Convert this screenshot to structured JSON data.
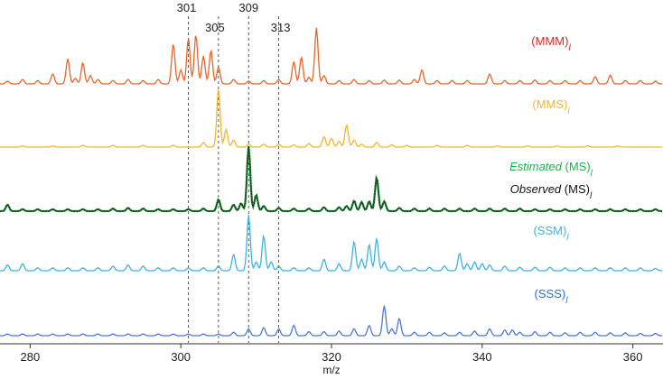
{
  "chart_data": {
    "type": "line",
    "xlabel": "m/z",
    "xlim": [
      276,
      364
    ],
    "x_ticks": [
      280,
      300,
      320,
      340,
      360
    ],
    "reference_lines": [
      {
        "x": 301,
        "label": "301"
      },
      {
        "x": 305,
        "label": "305"
      },
      {
        "x": 309,
        "label": "309"
      },
      {
        "x": 313,
        "label": "313"
      }
    ],
    "series": [
      {
        "key": "MMM",
        "label_parts": [
          {
            "text": "(MMM)",
            "italic": false
          },
          {
            "text": "l",
            "italic": true,
            "sub": true
          }
        ],
        "color": "#e8662a",
        "label_color": "#e8231f",
        "peaks": [
          [
            277,
            0.05
          ],
          [
            279,
            0.08
          ],
          [
            281,
            0.06
          ],
          [
            283,
            0.18
          ],
          [
            285,
            0.45
          ],
          [
            286,
            0.1
          ],
          [
            287,
            0.38
          ],
          [
            288,
            0.15
          ],
          [
            289,
            0.08
          ],
          [
            291,
            0.06
          ],
          [
            293,
            0.08
          ],
          [
            295,
            0.06
          ],
          [
            297,
            0.08
          ],
          [
            299,
            0.72
          ],
          [
            300,
            0.25
          ],
          [
            301,
            0.82
          ],
          [
            302,
            0.88
          ],
          [
            303,
            0.5
          ],
          [
            304,
            0.6
          ],
          [
            305,
            0.3
          ],
          [
            307,
            0.08
          ],
          [
            309,
            0.05
          ],
          [
            311,
            0.06
          ],
          [
            313,
            0.08
          ],
          [
            315,
            0.4
          ],
          [
            316,
            0.48
          ],
          [
            317,
            0.12
          ],
          [
            318,
            1.0
          ],
          [
            319,
            0.15
          ],
          [
            321,
            0.06
          ],
          [
            323,
            0.08
          ],
          [
            325,
            0.06
          ],
          [
            327,
            0.07
          ],
          [
            329,
            0.07
          ],
          [
            331,
            0.08
          ],
          [
            332,
            0.25
          ],
          [
            334,
            0.06
          ],
          [
            336,
            0.06
          ],
          [
            338,
            0.06
          ],
          [
            341,
            0.18
          ],
          [
            343,
            0.06
          ],
          [
            345,
            0.06
          ],
          [
            347,
            0.07
          ],
          [
            349,
            0.06
          ],
          [
            351,
            0.06
          ],
          [
            353,
            0.06
          ],
          [
            355,
            0.13
          ],
          [
            357,
            0.16
          ],
          [
            359,
            0.06
          ],
          [
            361,
            0.06
          ],
          [
            363,
            0.05
          ]
        ]
      },
      {
        "key": "MMS",
        "label_parts": [
          {
            "text": "(MMS)",
            "italic": false
          },
          {
            "text": "l",
            "italic": true,
            "sub": true
          }
        ],
        "color": "#f2b62a",
        "label_color": "#f2b62a",
        "peaks": [
          [
            279,
            0.02
          ],
          [
            283,
            0.02
          ],
          [
            287,
            0.03
          ],
          [
            291,
            0.03
          ],
          [
            295,
            0.03
          ],
          [
            299,
            0.03
          ],
          [
            303,
            0.08
          ],
          [
            305,
            1.0
          ],
          [
            306,
            0.3
          ],
          [
            307,
            0.12
          ],
          [
            309,
            0.05
          ],
          [
            311,
            0.05
          ],
          [
            313,
            0.05
          ],
          [
            315,
            0.04
          ],
          [
            317,
            0.06
          ],
          [
            319,
            0.18
          ],
          [
            320,
            0.15
          ],
          [
            321,
            0.1
          ],
          [
            322,
            0.38
          ],
          [
            323,
            0.12
          ],
          [
            324,
            0.05
          ],
          [
            326,
            0.08
          ],
          [
            328,
            0.04
          ],
          [
            330,
            0.03
          ],
          [
            334,
            0.03
          ],
          [
            338,
            0.03
          ],
          [
            342,
            0.02
          ],
          [
            346,
            0.02
          ],
          [
            350,
            0.02
          ],
          [
            354,
            0.02
          ],
          [
            358,
            0.02
          ]
        ]
      },
      {
        "key": "MS",
        "label_parts": [
          {
            "text": "Estimated",
            "italic": true
          },
          {
            "text": " (MS)",
            "italic": false
          },
          {
            "text": "l",
            "italic": true,
            "sub": true
          }
        ],
        "label2_parts": [
          {
            "text": "Observed",
            "italic": true
          },
          {
            "text": " (MS)",
            "italic": false
          },
          {
            "text": "l",
            "italic": true,
            "sub": true
          }
        ],
        "color": "#1a7a2e",
        "observed_color": "#111111",
        "label_color": "#1db34a",
        "label2_color": "#111111",
        "peaks": [
          [
            277,
            0.1
          ],
          [
            279,
            0.03
          ],
          [
            281,
            0.03
          ],
          [
            283,
            0.03
          ],
          [
            285,
            0.03
          ],
          [
            287,
            0.03
          ],
          [
            289,
            0.03
          ],
          [
            291,
            0.04
          ],
          [
            293,
            0.05
          ],
          [
            295,
            0.04
          ],
          [
            297,
            0.03
          ],
          [
            299,
            0.03
          ],
          [
            301,
            0.03
          ],
          [
            303,
            0.04
          ],
          [
            305,
            0.18
          ],
          [
            307,
            0.1
          ],
          [
            308,
            0.12
          ],
          [
            309,
            1.0
          ],
          [
            310,
            0.25
          ],
          [
            311,
            0.08
          ],
          [
            313,
            0.05
          ],
          [
            315,
            0.04
          ],
          [
            317,
            0.04
          ],
          [
            319,
            0.06
          ],
          [
            321,
            0.06
          ],
          [
            322,
            0.08
          ],
          [
            323,
            0.16
          ],
          [
            324,
            0.14
          ],
          [
            325,
            0.15
          ],
          [
            326,
            0.52
          ],
          [
            327,
            0.15
          ],
          [
            329,
            0.05
          ],
          [
            331,
            0.04
          ],
          [
            333,
            0.04
          ],
          [
            335,
            0.04
          ],
          [
            337,
            0.04
          ],
          [
            339,
            0.04
          ],
          [
            341,
            0.04
          ],
          [
            343,
            0.04
          ],
          [
            345,
            0.04
          ],
          [
            347,
            0.03
          ],
          [
            349,
            0.03
          ],
          [
            351,
            0.03
          ],
          [
            353,
            0.03
          ],
          [
            355,
            0.03
          ],
          [
            357,
            0.03
          ],
          [
            359,
            0.03
          ],
          [
            361,
            0.03
          ],
          [
            363,
            0.03
          ]
        ]
      },
      {
        "key": "SSM",
        "label_parts": [
          {
            "text": "(SSM)",
            "italic": false
          },
          {
            "text": "l",
            "italic": true,
            "sub": true
          }
        ],
        "color": "#3bb5e0",
        "label_color": "#3bb5e0",
        "peaks": [
          [
            277,
            0.1
          ],
          [
            279,
            0.12
          ],
          [
            281,
            0.05
          ],
          [
            283,
            0.05
          ],
          [
            285,
            0.05
          ],
          [
            287,
            0.05
          ],
          [
            289,
            0.05
          ],
          [
            291,
            0.08
          ],
          [
            293,
            0.1
          ],
          [
            295,
            0.08
          ],
          [
            297,
            0.05
          ],
          [
            299,
            0.05
          ],
          [
            301,
            0.05
          ],
          [
            303,
            0.05
          ],
          [
            305,
            0.08
          ],
          [
            307,
            0.28
          ],
          [
            309,
            0.95
          ],
          [
            310,
            0.15
          ],
          [
            311,
            0.6
          ],
          [
            312,
            0.15
          ],
          [
            313,
            0.08
          ],
          [
            315,
            0.05
          ],
          [
            317,
            0.05
          ],
          [
            319,
            0.2
          ],
          [
            321,
            0.12
          ],
          [
            323,
            0.5
          ],
          [
            324,
            0.2
          ],
          [
            325,
            0.45
          ],
          [
            326,
            0.55
          ],
          [
            327,
            0.15
          ],
          [
            329,
            0.08
          ],
          [
            331,
            0.05
          ],
          [
            333,
            0.06
          ],
          [
            335,
            0.08
          ],
          [
            337,
            0.3
          ],
          [
            338,
            0.12
          ],
          [
            339,
            0.15
          ],
          [
            340,
            0.12
          ],
          [
            341,
            0.1
          ],
          [
            343,
            0.08
          ],
          [
            345,
            0.06
          ],
          [
            347,
            0.06
          ],
          [
            349,
            0.06
          ],
          [
            351,
            0.05
          ],
          [
            353,
            0.05
          ],
          [
            355,
            0.05
          ],
          [
            357,
            0.05
          ],
          [
            359,
            0.05
          ],
          [
            361,
            0.05
          ],
          [
            363,
            0.04
          ]
        ]
      },
      {
        "key": "SSS",
        "label_parts": [
          {
            "text": "(SSS)",
            "italic": false
          },
          {
            "text": "l",
            "italic": true,
            "sub": true
          }
        ],
        "color": "#4a7ad0",
        "label_color": "#2f6bd6",
        "peaks": [
          [
            277,
            0.03
          ],
          [
            279,
            0.03
          ],
          [
            281,
            0.03
          ],
          [
            283,
            0.03
          ],
          [
            285,
            0.03
          ],
          [
            287,
            0.03
          ],
          [
            289,
            0.03
          ],
          [
            291,
            0.03
          ],
          [
            293,
            0.03
          ],
          [
            295,
            0.03
          ],
          [
            297,
            0.03
          ],
          [
            299,
            0.03
          ],
          [
            301,
            0.03
          ],
          [
            303,
            0.03
          ],
          [
            305,
            0.03
          ],
          [
            307,
            0.06
          ],
          [
            309,
            0.12
          ],
          [
            311,
            0.14
          ],
          [
            313,
            0.12
          ],
          [
            315,
            0.18
          ],
          [
            317,
            0.07
          ],
          [
            319,
            0.07
          ],
          [
            321,
            0.08
          ],
          [
            323,
            0.12
          ],
          [
            325,
            0.18
          ],
          [
            327,
            0.52
          ],
          [
            328,
            0.12
          ],
          [
            329,
            0.3
          ],
          [
            331,
            0.06
          ],
          [
            333,
            0.06
          ],
          [
            335,
            0.05
          ],
          [
            337,
            0.06
          ],
          [
            339,
            0.08
          ],
          [
            341,
            0.12
          ],
          [
            343,
            0.1
          ],
          [
            344,
            0.1
          ],
          [
            345,
            0.06
          ],
          [
            347,
            0.07
          ],
          [
            349,
            0.06
          ],
          [
            351,
            0.05
          ],
          [
            353,
            0.06
          ],
          [
            355,
            0.06
          ],
          [
            357,
            0.05
          ],
          [
            359,
            0.05
          ],
          [
            361,
            0.04
          ],
          [
            363,
            0.04
          ]
        ]
      }
    ]
  }
}
